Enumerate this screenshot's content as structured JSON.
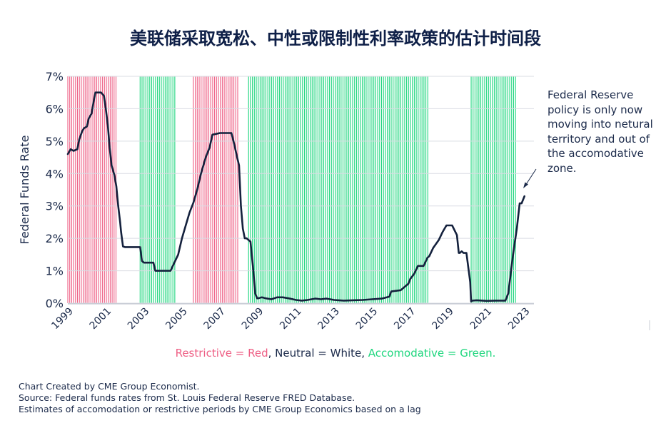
{
  "title": "美联储采取宽松、中性或限制性利率政策的估计时间段",
  "annotation": "Federal Reserve policy is only now moving into netural territory and out of the accomodative zone.",
  "legend": {
    "restrictive": "Restrictive = Red",
    "sep1": ", ",
    "neutral": "Neutral = White",
    "sep2": ", ",
    "accommodative": "Accomodative = Green."
  },
  "footer": {
    "line1": "Chart Created by CME Group Economist.",
    "line2": "Source: Federal funds rates from St. Louis Federal Reserve FRED Database.",
    "line3": "Estimates of accomodation or restrictive periods by CME Group Economics based on a lag"
  },
  "colors": {
    "restrictive": "#ee5e84",
    "accommodative": "#1fd67e",
    "line": "#14213d",
    "grid": "#d9dce3"
  },
  "chart_data": {
    "type": "line",
    "title": "美联储采取宽松、中性或限制性利率政策的估计时间段",
    "xlabel": "",
    "ylabel": "Federal Funds Rate",
    "xlim": [
      1999.0,
      2023.5
    ],
    "ylim": [
      0,
      7
    ],
    "x_ticks": [
      "1999",
      "2001",
      "2003",
      "2005",
      "2007",
      "2009",
      "2011",
      "2013",
      "2015",
      "2017",
      "2019",
      "2021",
      "2023"
    ],
    "y_ticks": [
      "0%",
      "1%",
      "2%",
      "3%",
      "4%",
      "5%",
      "6%",
      "7%"
    ],
    "grid": true,
    "legend": "bottom",
    "shaded_periods": [
      {
        "type": "restrictive",
        "start": 1999.0,
        "end": 2001.6
      },
      {
        "type": "accommodative",
        "start": 2002.8,
        "end": 2004.7
      },
      {
        "type": "restrictive",
        "start": 2005.6,
        "end": 2008.0
      },
      {
        "type": "accommodative",
        "start": 2008.5,
        "end": 2018.0
      },
      {
        "type": "accommodative",
        "start": 2020.2,
        "end": 2022.6
      }
    ],
    "series": [
      {
        "x": [
          1999.0,
          1999.15,
          1999.3,
          1999.5,
          1999.6,
          1999.75,
          1999.85,
          2000.0,
          2000.1,
          2000.25,
          2000.35,
          2000.45,
          2000.75,
          2000.9,
          2001.0,
          2001.1,
          2001.2,
          2001.3,
          2001.45,
          2001.55,
          2001.65,
          2001.75,
          2001.8,
          2001.9,
          2002.0,
          2002.3,
          2002.5,
          2002.8,
          2002.9,
          2003.0,
          2003.5,
          2003.6,
          2004.0,
          2004.4,
          2004.6,
          2004.8,
          2005.0,
          2005.2,
          2005.4,
          2005.6,
          2005.8,
          2006.0,
          2006.25,
          2006.45,
          2006.6,
          2007.0,
          2007.6,
          2007.75,
          2007.9,
          2008.0,
          2008.1,
          2008.2,
          2008.3,
          2008.4,
          2008.6,
          2008.75,
          2008.85,
          2008.95,
          2009.0,
          2009.2,
          2009.4,
          2009.7,
          2010.0,
          2010.3,
          2010.6,
          2011.0,
          2011.3,
          2011.6,
          2012.0,
          2012.3,
          2012.6,
          2013.0,
          2013.5,
          2014.0,
          2014.5,
          2015.0,
          2015.5,
          2015.9,
          2016.0,
          2016.5,
          2016.9,
          2017.0,
          2017.2,
          2017.4,
          2017.7,
          2017.9,
          2018.0,
          2018.2,
          2018.5,
          2018.7,
          2018.9,
          2019.0,
          2019.2,
          2019.45,
          2019.55,
          2019.6,
          2019.7,
          2019.8,
          2019.95,
          2020.15,
          2020.2,
          2020.25,
          2020.5,
          2021.0,
          2021.5,
          2022.0,
          2022.15,
          2022.25,
          2022.35,
          2022.45,
          2022.6,
          2022.75,
          2022.85,
          2023.0
        ],
        "y": [
          4.6,
          4.75,
          4.7,
          4.75,
          5.05,
          5.3,
          5.4,
          5.45,
          5.7,
          5.85,
          6.2,
          6.5,
          6.5,
          6.4,
          5.98,
          5.5,
          4.8,
          4.25,
          3.95,
          3.6,
          3.0,
          2.5,
          2.2,
          1.75,
          1.73,
          1.73,
          1.73,
          1.73,
          1.3,
          1.25,
          1.25,
          1.0,
          1.0,
          1.0,
          1.25,
          1.5,
          2.0,
          2.4,
          2.8,
          3.1,
          3.5,
          4.0,
          4.5,
          4.8,
          5.2,
          5.25,
          5.25,
          4.9,
          4.5,
          4.25,
          3.0,
          2.3,
          2.0,
          2.0,
          1.9,
          1.0,
          0.3,
          0.15,
          0.15,
          0.18,
          0.15,
          0.12,
          0.18,
          0.18,
          0.15,
          0.1,
          0.08,
          0.1,
          0.14,
          0.12,
          0.14,
          0.1,
          0.08,
          0.09,
          0.1,
          0.12,
          0.14,
          0.2,
          0.36,
          0.4,
          0.6,
          0.75,
          0.9,
          1.15,
          1.15,
          1.4,
          1.45,
          1.7,
          1.95,
          2.2,
          2.4,
          2.4,
          2.4,
          2.1,
          1.55,
          1.55,
          1.6,
          1.55,
          1.55,
          0.65,
          0.05,
          0.08,
          0.09,
          0.07,
          0.08,
          0.08,
          0.3,
          0.77,
          1.25,
          1.7,
          2.3,
          3.08,
          3.08,
          3.3
        ]
      }
    ]
  }
}
